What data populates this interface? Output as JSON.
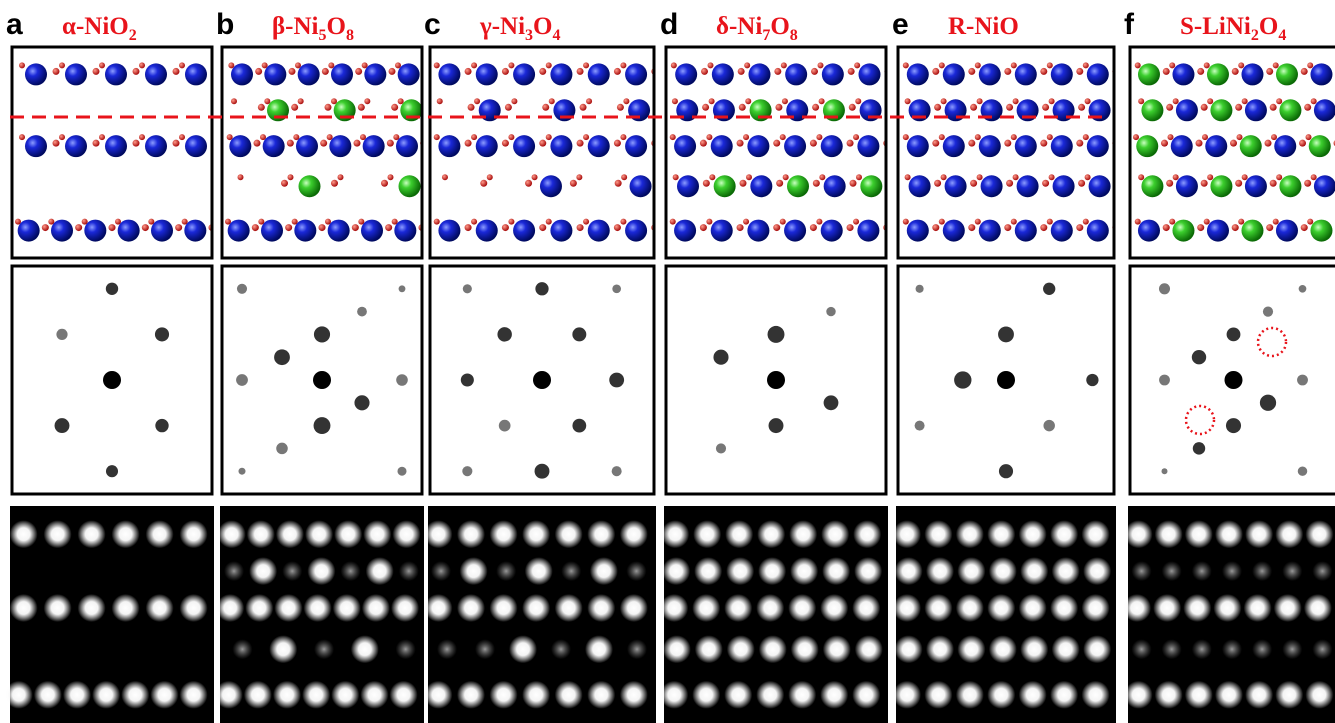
{
  "panels": [
    {
      "letter": "a",
      "title": [
        "α-NiO",
        "2"
      ]
    },
    {
      "letter": "b",
      "title": [
        "β-Ni",
        "5",
        "O",
        "8"
      ]
    },
    {
      "letter": "c",
      "title": [
        "γ-Ni",
        "3",
        "O",
        "4"
      ]
    },
    {
      "letter": "d",
      "title": [
        "δ-Ni",
        "7",
        "O",
        "8"
      ]
    },
    {
      "letter": "e",
      "title": [
        "R-NiO"
      ]
    },
    {
      "letter": "f",
      "title": [
        "S-LiNi",
        "2",
        "O",
        "4"
      ]
    }
  ]
}
